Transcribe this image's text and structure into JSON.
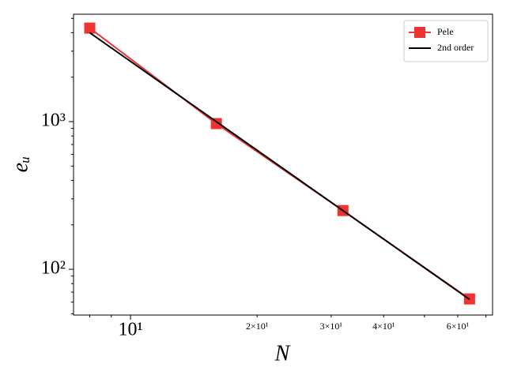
{
  "chart_data": {
    "type": "line",
    "xlabel": "N",
    "ylabel": "eᵤ",
    "log_x": true,
    "log_y": true,
    "x": [
      8,
      16,
      32,
      64
    ],
    "series": [
      {
        "name": "Pele",
        "color": "#ee3333",
        "marker": "square",
        "values": [
          4300,
          970,
          250,
          63
        ]
      },
      {
        "name": "2nd order",
        "color": "#000000",
        "values": [
          4000,
          1000,
          250,
          62.5
        ]
      }
    ],
    "xlim": [
      7.32,
      72.6
    ],
    "ylim": [
      49,
      5340
    ],
    "xticks": [
      {
        "value": 10,
        "label": "10¹"
      },
      {
        "value": 20,
        "label": "2×10¹"
      },
      {
        "value": 30,
        "label": "3×10¹"
      },
      {
        "value": 40,
        "label": "4×10¹"
      },
      {
        "value": 60,
        "label": "6×10¹"
      }
    ],
    "xminor": [
      8,
      9,
      50,
      70
    ],
    "yticks": [
      {
        "value": 100,
        "label": "10²"
      },
      {
        "value": 1000,
        "label": "10³"
      }
    ],
    "yminor": [
      50,
      60,
      70,
      80,
      90,
      200,
      300,
      400,
      500,
      600,
      700,
      800,
      900,
      2000,
      3000,
      4000,
      5000
    ],
    "grid": false,
    "legend": "upper-right"
  }
}
